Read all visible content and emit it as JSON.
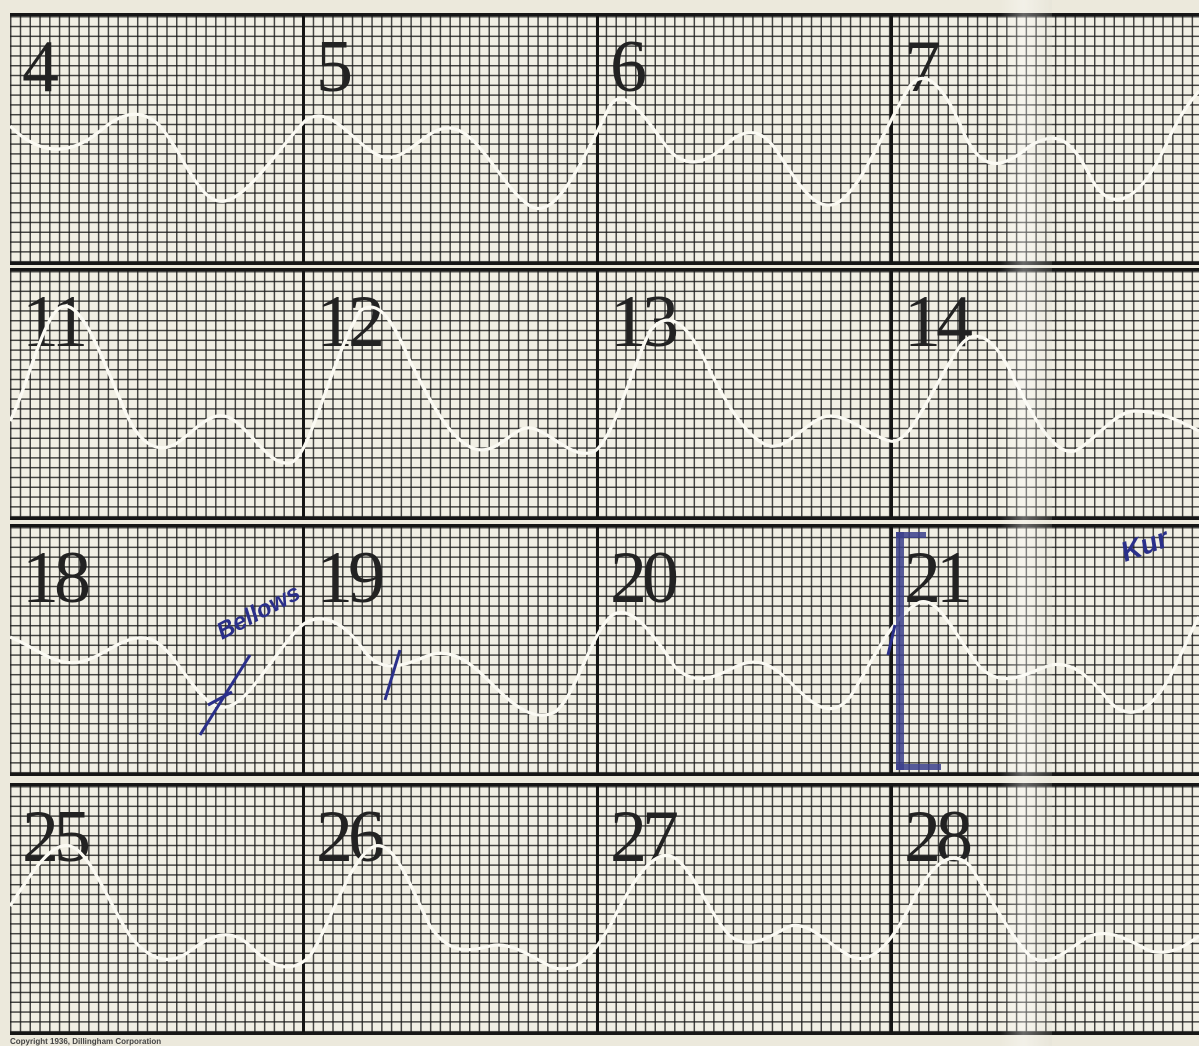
{
  "rows": [
    {
      "days": [
        "4",
        "5",
        "6",
        "7"
      ]
    },
    {
      "days": [
        "11",
        "12",
        "13",
        "14"
      ]
    },
    {
      "days": [
        "18",
        "19",
        "20",
        "21"
      ]
    },
    {
      "days": [
        "25",
        "26",
        "27",
        "28"
      ]
    }
  ],
  "annotations": {
    "handwritten_1": "Bellows",
    "handwritten_2": "Kur"
  },
  "copyright": "Copyright 1936, Dillingham Corporation",
  "colors": {
    "paper": "#f1efe4",
    "grid": "#191919",
    "trace": "#fbfaf3",
    "ink": "#2a2f8a"
  }
}
